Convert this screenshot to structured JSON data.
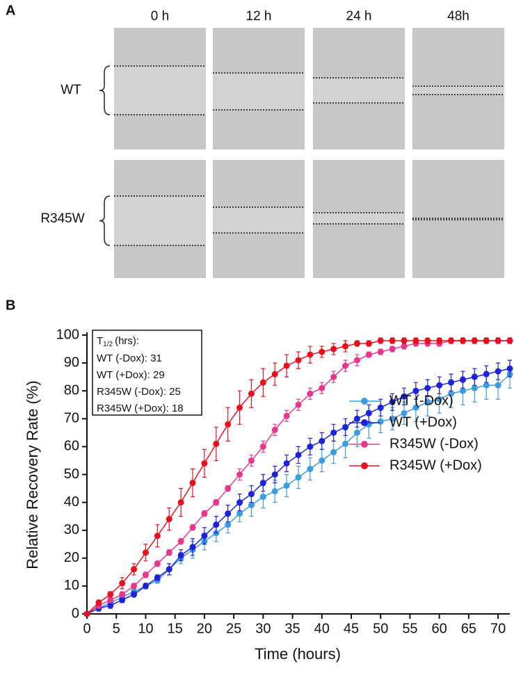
{
  "panel_a": {
    "label": "A",
    "columns": [
      "0 h",
      "12 h",
      "24 h",
      "48h"
    ],
    "rows": [
      "WT",
      "R345W"
    ]
  },
  "panel_b_label": "B",
  "chart_data": {
    "type": "line",
    "x_label": "Time (hours)",
    "y_label": "Relative Recovery Rate (%)",
    "x": [
      0,
      2,
      4,
      6,
      8,
      10,
      12,
      14,
      16,
      18,
      20,
      22,
      24,
      26,
      28,
      30,
      32,
      34,
      36,
      38,
      40,
      42,
      44,
      46,
      48,
      50,
      52,
      54,
      56,
      58,
      60,
      62,
      64,
      66,
      68,
      70,
      72
    ],
    "xlim": [
      0,
      72
    ],
    "xticks": [
      0,
      5,
      10,
      15,
      20,
      25,
      30,
      35,
      40,
      45,
      50,
      55,
      60,
      65,
      70
    ],
    "ylim": [
      0,
      100
    ],
    "yticks": [
      0,
      10,
      20,
      30,
      40,
      50,
      60,
      70,
      80,
      90,
      100
    ],
    "legend": "lower right",
    "inset": {
      "title": {
        "text": "T",
        "sub": "1/2",
        "rest": "(hrs):"
      },
      "lines": [
        "WT (-Dox): 31",
        "WT (+Dox): 29",
        "R345W (-Dox): 25",
        "R345W (+Dox): 18"
      ]
    },
    "series": [
      {
        "name": "WT (-Dox)",
        "color": "#3d9be0",
        "values": [
          0,
          2,
          4,
          6,
          8,
          10,
          12,
          16,
          20,
          23,
          26,
          29,
          32,
          36,
          39,
          42,
          44,
          46,
          49,
          52,
          55,
          58,
          61,
          65,
          68,
          69,
          70,
          72,
          74,
          76,
          77,
          79,
          80,
          81,
          82,
          82,
          86
        ],
        "errors": [
          0,
          1,
          1,
          1,
          1,
          1,
          1,
          2,
          2,
          3,
          3,
          3,
          3,
          3,
          4,
          4,
          4,
          4,
          4,
          4,
          4,
          4,
          5,
          5,
          5,
          4,
          4,
          4,
          5,
          5,
          5,
          5,
          5,
          5,
          5,
          5,
          5
        ]
      },
      {
        "name": "WT (+Dox)",
        "color": "#1e22d8",
        "values": [
          0,
          2,
          3,
          5,
          7,
          10,
          13,
          16,
          21,
          24,
          28,
          32,
          36,
          40,
          43,
          47,
          50,
          54,
          57,
          60,
          62,
          65,
          67,
          70,
          72,
          74,
          76,
          78,
          80,
          81,
          82,
          83,
          84,
          85,
          86,
          87,
          88
        ],
        "errors": [
          0,
          1,
          1,
          1,
          1,
          1,
          1,
          2,
          2,
          3,
          3,
          3,
          3,
          3,
          3,
          3,
          3,
          3,
          3,
          3,
          3,
          3,
          3,
          3,
          3,
          3,
          3,
          3,
          3,
          3,
          3,
          3,
          3,
          3,
          3,
          3,
          3
        ]
      },
      {
        "name": "R345W (-Dox)",
        "color": "#e8388e",
        "values": [
          0,
          3,
          5,
          7,
          10,
          14,
          18,
          22,
          26,
          31,
          36,
          40,
          45,
          50,
          55,
          60,
          66,
          71,
          75,
          79,
          81,
          85,
          89,
          91,
          93,
          94,
          95,
          96,
          97,
          97,
          97,
          98,
          98,
          98,
          98,
          98,
          98
        ],
        "errors": [
          0,
          1,
          1,
          1,
          1,
          1,
          1,
          1,
          1,
          1,
          1,
          1,
          1,
          2,
          2,
          2,
          2,
          2,
          2,
          2,
          2,
          2,
          2,
          2,
          1,
          1,
          1,
          1,
          1,
          1,
          1,
          1,
          1,
          1,
          1,
          1,
          1
        ]
      },
      {
        "name": "R345W (+Dox)",
        "color": "#e8101e",
        "values": [
          0,
          4,
          7,
          11,
          16,
          22,
          28,
          34,
          40,
          47,
          54,
          61,
          68,
          74,
          79,
          83,
          86,
          89,
          91,
          93,
          94,
          95,
          96,
          97,
          97,
          98,
          98,
          98,
          98,
          98,
          98,
          98,
          98,
          98,
          98,
          98,
          98
        ],
        "errors": [
          0,
          1,
          1,
          2,
          2,
          3,
          4,
          4,
          5,
          5,
          5,
          6,
          6,
          6,
          5,
          5,
          4,
          4,
          3,
          3,
          2,
          2,
          2,
          1,
          1,
          1,
          1,
          1,
          1,
          1,
          1,
          1,
          1,
          1,
          1,
          1,
          1
        ]
      }
    ]
  }
}
